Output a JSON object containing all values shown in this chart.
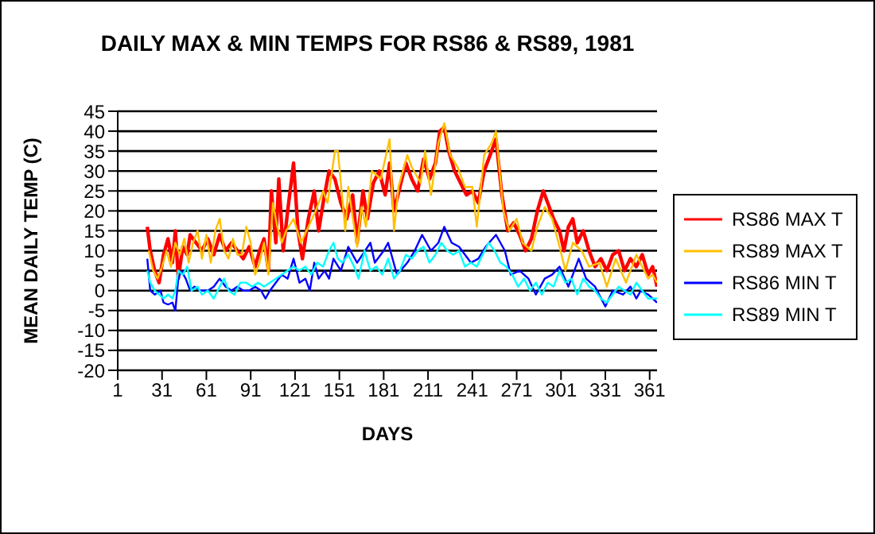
{
  "chart_data": {
    "type": "line",
    "title": "DAILY MAX & MIN TEMPS FOR RS86 & RS89, 1981",
    "xlabel": "DAYS",
    "ylabel": "MEAN DAILY TEMP (C)",
    "xlim": [
      1,
      366
    ],
    "xticks": [
      1,
      31,
      61,
      91,
      121,
      151,
      181,
      211,
      241,
      271,
      301,
      331,
      361
    ],
    "ylim": [
      -20,
      45
    ],
    "yticks": [
      -20,
      -15,
      -10,
      -5,
      0,
      5,
      10,
      15,
      20,
      25,
      30,
      35,
      40,
      45
    ],
    "grid": "y",
    "legend": "right",
    "series": [
      {
        "name": "RS86 MAX T",
        "color": "#ff0000",
        "x": [
          21,
          23,
          26,
          29,
          32,
          35,
          38,
          40,
          42,
          45,
          48,
          50,
          54,
          58,
          62,
          66,
          70,
          74,
          78,
          82,
          86,
          90,
          94,
          97,
          100,
          103,
          105,
          108,
          110,
          113,
          116,
          120,
          123,
          126,
          130,
          134,
          137,
          140,
          144,
          148,
          152,
          156,
          160,
          163,
          167,
          170,
          174,
          178,
          182,
          185,
          188,
          192,
          196,
          200,
          204,
          208,
          212,
          216,
          219,
          222,
          225,
          229,
          233,
          237,
          241,
          245,
          249,
          253,
          257,
          261,
          265,
          269,
          273,
          277,
          281,
          285,
          289,
          292,
          296,
          300,
          303,
          306,
          309,
          312,
          316,
          320,
          324,
          328,
          332,
          336,
          340,
          344,
          348,
          352,
          356,
          360,
          363,
          366
        ],
        "values": [
          16,
          10,
          5,
          2,
          9,
          13,
          7,
          15,
          3,
          11,
          9,
          14,
          12,
          10,
          13,
          9,
          14,
          10,
          12,
          10,
          8,
          11,
          6,
          10,
          13,
          5,
          25,
          12,
          28,
          10,
          20,
          32,
          15,
          8,
          18,
          25,
          15,
          22,
          30,
          28,
          22,
          18,
          24,
          12,
          25,
          18,
          27,
          30,
          24,
          32,
          20,
          26,
          32,
          28,
          25,
          33,
          28,
          32,
          40,
          41,
          35,
          30,
          27,
          24,
          25,
          22,
          30,
          34,
          38,
          24,
          15,
          17,
          14,
          10,
          13,
          20,
          25,
          22,
          18,
          15,
          10,
          16,
          18,
          12,
          15,
          10,
          6,
          8,
          5,
          9,
          10,
          5,
          8,
          6,
          9,
          4,
          6,
          1
        ]
      },
      {
        "name": "RS89 MAX T",
        "color": "#ffc000",
        "x": [
          22,
          25,
          28,
          31,
          34,
          37,
          40,
          43,
          46,
          49,
          52,
          55,
          58,
          61,
          64,
          67,
          70,
          73,
          76,
          79,
          82,
          85,
          88,
          91,
          94,
          97,
          100,
          103,
          106,
          109,
          112,
          115,
          120,
          125,
          130,
          135,
          140,
          143,
          148,
          150,
          155,
          157,
          163,
          166,
          169,
          173,
          179,
          185,
          188,
          191,
          197,
          200,
          206,
          209,
          213,
          218,
          222,
          226,
          231,
          236,
          241,
          244,
          249,
          254,
          257,
          262,
          266,
          271,
          275,
          281,
          285,
          290,
          295,
          300,
          304,
          309,
          315,
          320,
          327,
          332,
          338,
          345,
          352,
          356,
          360,
          363,
          366
        ],
        "values": [
          10,
          5,
          3,
          6,
          10,
          6,
          12,
          9,
          13,
          7,
          12,
          15,
          8,
          14,
          7,
          15,
          18,
          10,
          8,
          13,
          9,
          9,
          16,
          12,
          4,
          7,
          12,
          4,
          22,
          16,
          12,
          15,
          18,
          12,
          16,
          20,
          25,
          22,
          35,
          35,
          15,
          26,
          11,
          21,
          16,
          30,
          28,
          38,
          15,
          26,
          34,
          31,
          27,
          35,
          24,
          37,
          42,
          34,
          31,
          26,
          26,
          16,
          34,
          37,
          40,
          20,
          15,
          18,
          12,
          10,
          16,
          21,
          18,
          11,
          5,
          12,
          10,
          6,
          7,
          1,
          8,
          2,
          9,
          6,
          3,
          4,
          2
        ]
      },
      {
        "name": "RS86 MIN T",
        "color": "#0000ff",
        "x": [
          21,
          23,
          26,
          30,
          32,
          35,
          38,
          40,
          42,
          44,
          47,
          50,
          53,
          57,
          62,
          66,
          70,
          74,
          78,
          82,
          86,
          90,
          94,
          98,
          101,
          104,
          108,
          112,
          116,
          120,
          124,
          128,
          131,
          134,
          137,
          141,
          144,
          147,
          152,
          157,
          163,
          172,
          175,
          181,
          184,
          190,
          197,
          202,
          207,
          213,
          218,
          222,
          227,
          232,
          240,
          245,
          250,
          257,
          263,
          267,
          273,
          279,
          284,
          290,
          295,
          300,
          306,
          313,
          318,
          324,
          331,
          336,
          343,
          348,
          352,
          355,
          360,
          366
        ],
        "values": [
          8,
          0,
          -1,
          0,
          -3,
          -3.5,
          -3,
          -5,
          3,
          5,
          3,
          0,
          1,
          0,
          0,
          1,
          3,
          1,
          0,
          1,
          0,
          0,
          1,
          0,
          -2,
          0,
          2,
          4,
          3,
          8,
          2,
          3,
          0,
          7,
          3,
          5,
          3,
          8,
          5,
          11,
          7,
          12,
          7,
          10,
          12,
          4,
          7,
          10,
          14,
          10,
          12,
          16,
          12,
          11,
          7,
          8,
          11,
          14,
          10,
          4,
          5,
          3,
          -1,
          3,
          4,
          6,
          1,
          8,
          3,
          1,
          -4,
          0,
          -1,
          1,
          -2,
          0,
          -1,
          -3
        ]
      },
      {
        "name": "RS89 MIN T",
        "color": "#00ffff",
        "x": [
          21,
          23,
          26,
          29,
          32,
          35,
          38,
          40,
          42,
          45,
          48,
          51,
          55,
          58,
          62,
          66,
          70,
          73,
          76,
          80,
          84,
          88,
          92,
          96,
          100,
          104,
          108,
          112,
          116,
          120,
          124,
          128,
          132,
          136,
          140,
          144,
          147,
          150,
          153,
          157,
          161,
          164,
          168,
          172,
          176,
          180,
          184,
          188,
          192,
          196,
          200,
          204,
          208,
          212,
          216,
          220,
          224,
          228,
          232,
          236,
          240,
          244,
          248,
          252,
          256,
          260,
          264,
          268,
          272,
          276,
          280,
          284,
          288,
          292,
          296,
          300,
          304,
          308,
          312,
          316,
          320,
          324,
          328,
          332,
          336,
          340,
          344,
          348,
          352,
          356,
          360,
          366
        ],
        "values": [
          5,
          2,
          0,
          -1,
          -2,
          -1,
          -2,
          0,
          5,
          4,
          6,
          0,
          1,
          -1,
          0,
          -2,
          1,
          3,
          0,
          -1,
          2,
          2,
          1,
          2,
          1,
          2,
          3,
          4,
          5,
          6,
          5,
          6,
          4,
          7,
          6,
          10,
          12,
          8,
          7,
          9,
          6,
          3,
          10,
          5,
          6,
          4,
          8,
          3,
          5,
          9,
          8,
          10,
          11,
          7,
          9,
          12,
          10,
          9,
          10,
          6,
          7,
          6,
          9,
          12,
          10,
          7,
          6,
          4,
          1,
          3,
          0,
          2,
          -1,
          2,
          1,
          5,
          2,
          3,
          -1,
          3,
          1,
          0,
          -2,
          -3,
          -1,
          1,
          0,
          -1,
          2,
          0,
          -2,
          -2
        ]
      }
    ]
  }
}
